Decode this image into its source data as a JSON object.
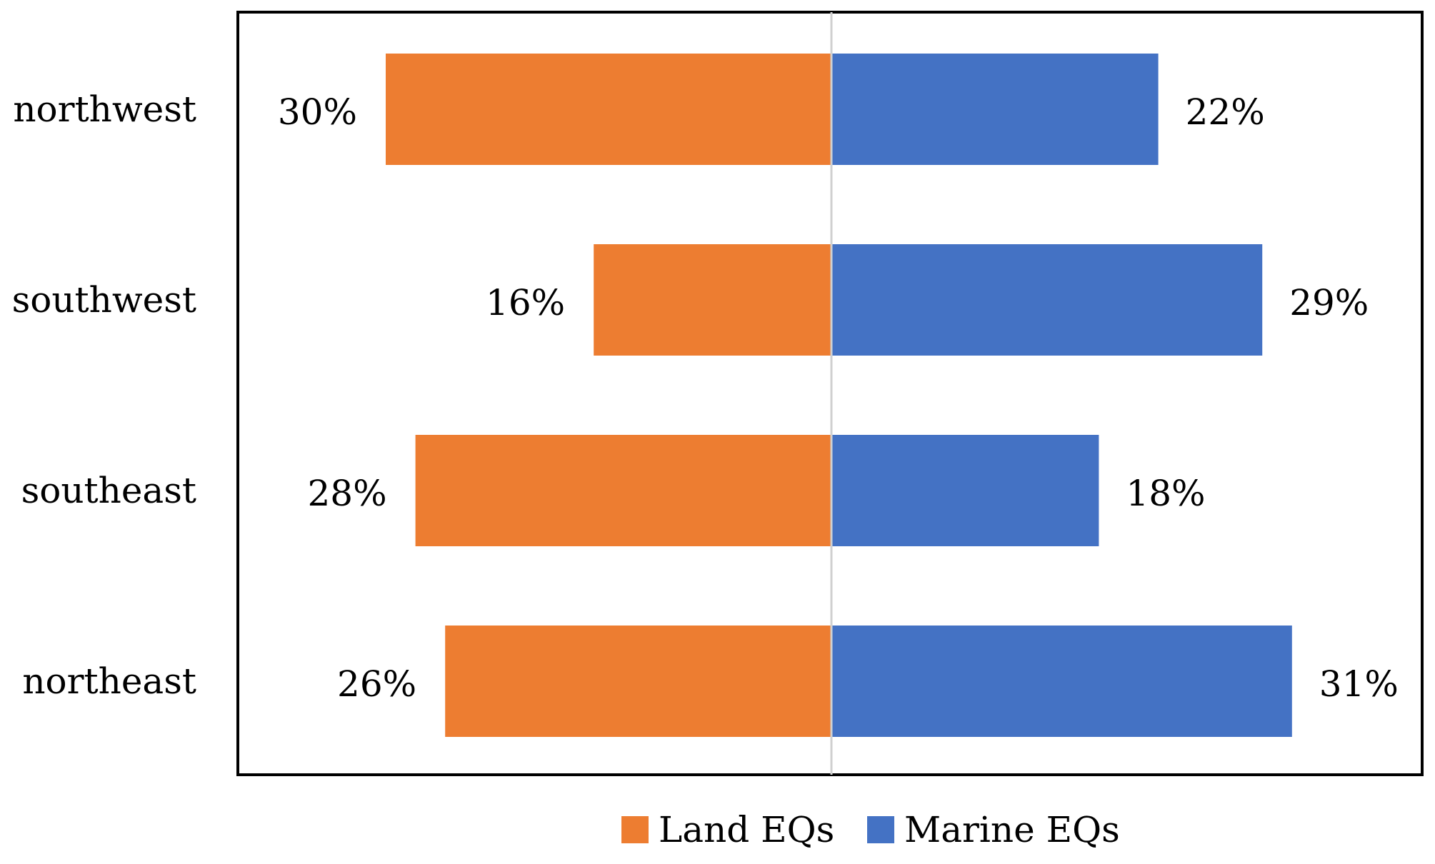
{
  "chart_data": {
    "type": "bar",
    "orientation": "horizontal",
    "layout": "diverging",
    "title": "",
    "xlabel": "",
    "ylabel": "",
    "categories": [
      "northwest",
      "southwest",
      "southeast",
      "northeast"
    ],
    "series": [
      {
        "name": "Land EQs",
        "color": "#ED7D31",
        "direction": "left",
        "values": [
          30,
          16,
          28,
          26
        ],
        "labels": [
          "30%",
          "16%",
          "28%",
          "26%"
        ]
      },
      {
        "name": "Marine EQs",
        "color": "#4472C4",
        "direction": "right",
        "values": [
          22,
          29,
          18,
          31
        ],
        "labels": [
          "22%",
          "29%",
          "18%",
          "31%"
        ]
      }
    ],
    "xlim": [
      -40,
      40
    ],
    "unit": "%",
    "grid": false,
    "legend_position": "bottom"
  }
}
